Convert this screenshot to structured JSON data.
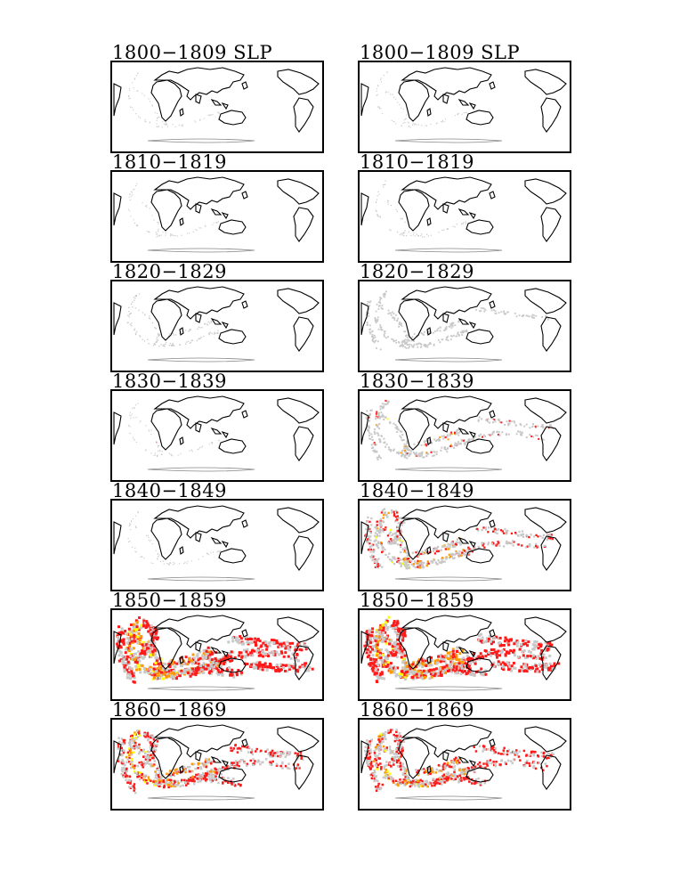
{
  "colors": {
    "coastline": "#000000",
    "low_density": "#c8c8c8",
    "medium_density": "#ff1a1a",
    "high_density": "#ff9900",
    "max_density": "#ffff00"
  },
  "columns": [
    {
      "panels": [
        {
          "title": "1800−1809 SLP",
          "density_level": 0.05,
          "hot": 0.0
        },
        {
          "title": "1810−1819",
          "density_level": 0.05,
          "hot": 0.0
        },
        {
          "title": "1820−1829",
          "density_level": 0.15,
          "hot": 0.0
        },
        {
          "title": "1830−1839",
          "density_level": 0.05,
          "hot": 0.05
        },
        {
          "title": "1840−1849",
          "density_level": 0.05,
          "hot": 0.0
        },
        {
          "title": "1850−1859",
          "density_level": 0.9,
          "hot": 0.85
        },
        {
          "title": "1860−1869",
          "density_level": 0.7,
          "hot": 0.7
        }
      ]
    },
    {
      "panels": [
        {
          "title": "1800−1809 SLP",
          "density_level": 0.05,
          "hot": 0.0
        },
        {
          "title": "1810−1819",
          "density_level": 0.08,
          "hot": 0.0
        },
        {
          "title": "1820−1829",
          "density_level": 0.35,
          "hot": 0.0
        },
        {
          "title": "1830−1839",
          "density_level": 0.45,
          "hot": 0.15
        },
        {
          "title": "1840−1849",
          "density_level": 0.6,
          "hot": 0.45
        },
        {
          "title": "1850−1859",
          "density_level": 0.9,
          "hot": 0.85
        },
        {
          "title": "1860−1869",
          "density_level": 0.7,
          "hot": 0.7
        }
      ]
    }
  ]
}
